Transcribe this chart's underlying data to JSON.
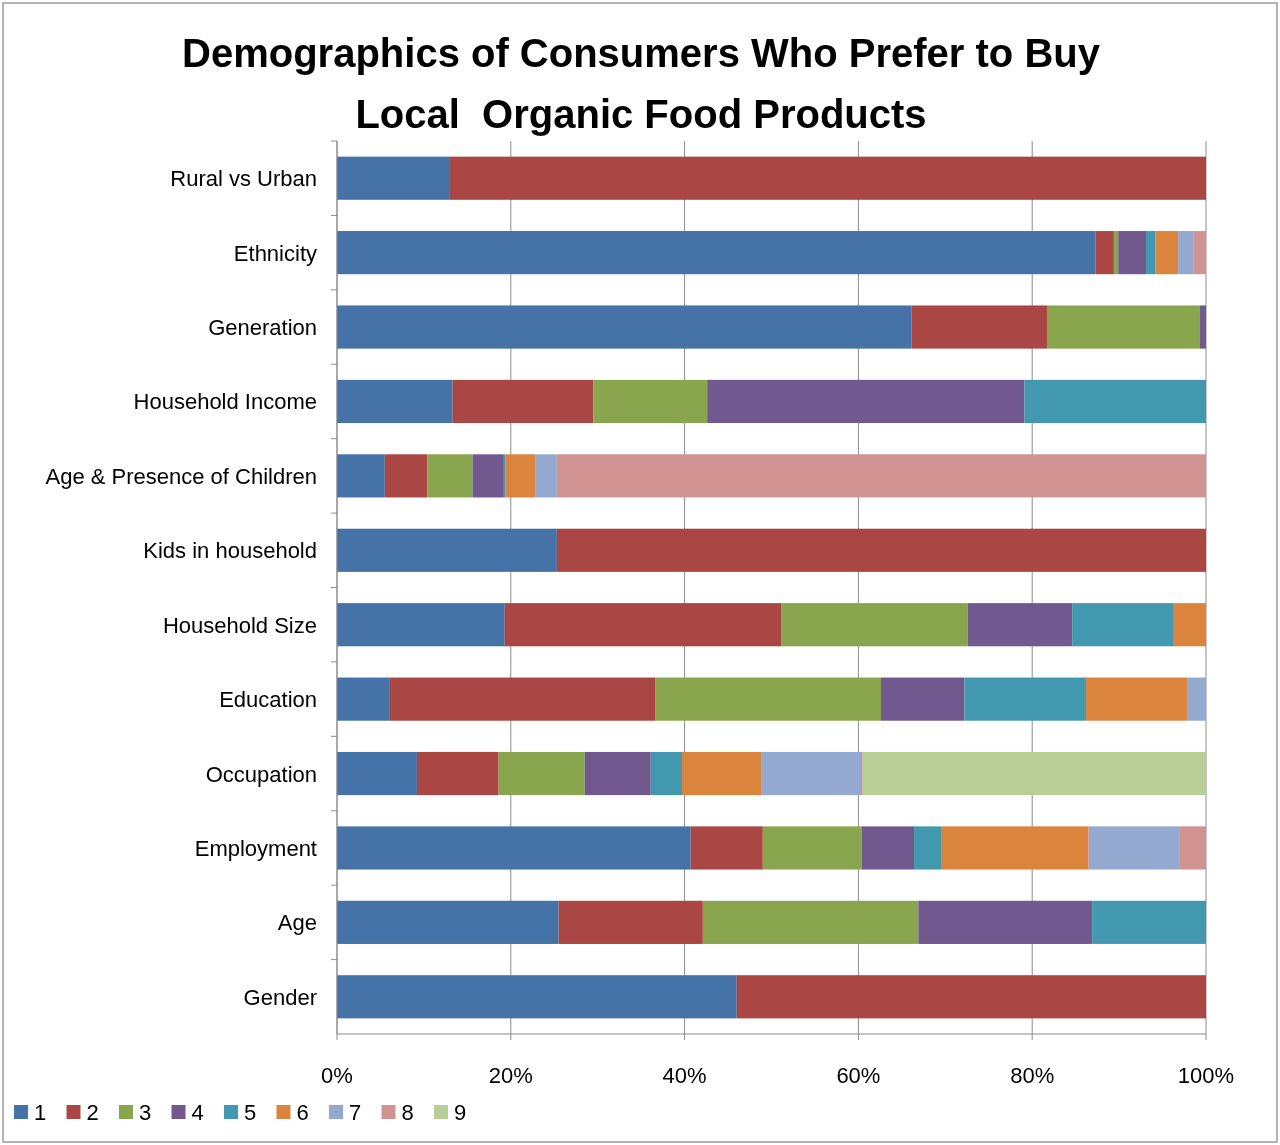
{
  "chart_data": {
    "type": "bar",
    "orientation": "horizontal",
    "stacked": true,
    "title": "Demographics of Consumers Who Prefer to Buy Local  Organic Food Products",
    "categories": [
      "Rural vs Urban",
      "Ethnicity",
      "Generation",
      "Household Income",
      "Age & Presence of Children",
      "Kids in household",
      "Household Size",
      "Education",
      "Occupation",
      "Employment",
      "Age",
      "Gender"
    ],
    "series": [
      {
        "name": "1",
        "color": "#4572a7",
        "values": [
          12.9,
          87.3,
          66.1,
          13.3,
          5.5,
          25.3,
          19.3,
          6.0,
          9.2,
          40.7,
          25.5,
          46.0
        ]
      },
      {
        "name": "2",
        "color": "#aa4643",
        "values": [
          87.1,
          2.1,
          15.6,
          16.2,
          4.9,
          74.7,
          31.8,
          30.6,
          9.4,
          8.3,
          16.6,
          54.0
        ]
      },
      {
        "name": "3",
        "color": "#89a54e",
        "values": [
          null,
          0.5,
          17.6,
          13.1,
          5.2,
          null,
          21.5,
          26.0,
          9.9,
          11.4,
          24.8,
          null
        ]
      },
      {
        "name": "4",
        "color": "#71588f",
        "values": [
          null,
          3.2,
          0.7,
          36.5,
          3.6,
          null,
          12.0,
          9.6,
          7.6,
          6.0,
          20.0,
          null
        ]
      },
      {
        "name": "5",
        "color": "#4198af",
        "values": [
          null,
          1.1,
          null,
          20.9,
          0.2,
          null,
          11.7,
          14.0,
          3.6,
          3.2,
          13.1,
          null
        ]
      },
      {
        "name": "6",
        "color": "#db843d",
        "values": [
          null,
          2.6,
          null,
          null,
          3.4,
          null,
          3.7,
          11.7,
          9.1,
          16.9,
          null,
          null
        ]
      },
      {
        "name": "7",
        "color": "#93a9cf",
        "values": [
          null,
          1.8,
          null,
          null,
          2.5,
          null,
          null,
          2.1,
          11.5,
          10.5,
          null,
          null
        ]
      },
      {
        "name": "8",
        "color": "#d19392",
        "values": [
          null,
          1.4,
          null,
          null,
          74.7,
          null,
          null,
          null,
          0.2,
          3.0,
          null,
          null
        ]
      },
      {
        "name": "9",
        "color": "#b9cd96",
        "values": [
          null,
          null,
          null,
          null,
          null,
          null,
          null,
          null,
          39.5,
          null,
          null,
          null
        ]
      }
    ],
    "xlim": [
      0,
      100
    ],
    "xticks": [
      {
        "value": 0,
        "label": "0%"
      },
      {
        "value": 20,
        "label": "20%"
      },
      {
        "value": 40,
        "label": "40%"
      },
      {
        "value": 60,
        "label": "60%"
      },
      {
        "value": 80,
        "label": "80%"
      },
      {
        "value": 100,
        "label": "100%"
      }
    ],
    "grid": "x",
    "legend": "bottom"
  }
}
